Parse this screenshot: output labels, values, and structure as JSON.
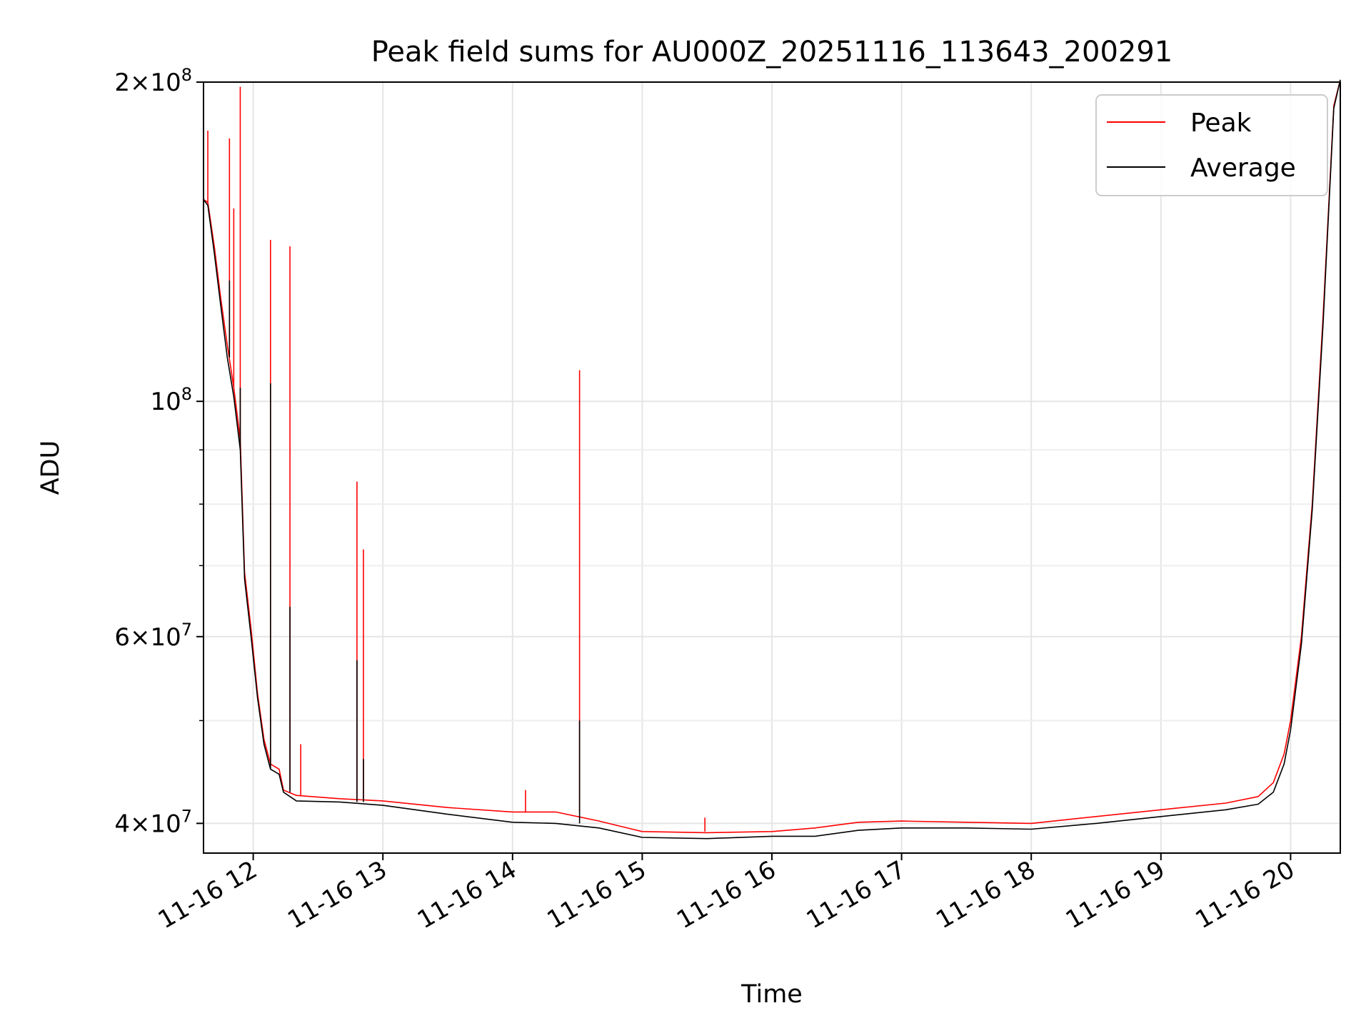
{
  "chart_data": {
    "type": "line",
    "title": "Peak field sums for AU000Z_20251116_113643_200291",
    "xlabel": "Time",
    "ylabel": "ADU",
    "yscale": "log",
    "ylim": [
      37500000,
      200000000
    ],
    "xlim": [
      "2025-11-16 11:37",
      "2025-11-16 20:23"
    ],
    "grid": true,
    "legend": "upper right",
    "x_ticks": [
      "11-16 12",
      "11-16 13",
      "11-16 14",
      "11-16 15",
      "11-16 16",
      "11-16 17",
      "11-16 18",
      "11-16 19",
      "11-16 20"
    ],
    "y_ticks_major": [
      {
        "value": 40000000,
        "base": "4",
        "exp": "7"
      },
      {
        "value": 60000000,
        "base": "6",
        "exp": "7"
      },
      {
        "value": 100000000,
        "base": "",
        "exp": "8"
      },
      {
        "value": 200000000,
        "base": "2",
        "exp": "8"
      }
    ],
    "y_ticks_minor": [
      50000000,
      70000000,
      80000000,
      90000000
    ],
    "series": [
      {
        "name": "Peak",
        "color": "#ff0000",
        "points": [
          [
            "2025-11-16 11:37",
            155000000
          ],
          [
            "2025-11-16 11:39",
            154000000
          ],
          [
            "2025-11-16 11:42",
            140000000
          ],
          [
            "2025-11-16 11:45",
            125000000
          ],
          [
            "2025-11-16 11:48",
            113000000
          ],
          [
            "2025-11-16 11:51",
            103000000
          ],
          [
            "2025-11-16 11:54",
            92000000
          ],
          [
            "2025-11-16 11:56",
            69000000
          ],
          [
            "2025-11-16 11:59",
            61000000
          ],
          [
            "2025-11-16 12:02",
            53000000
          ],
          [
            "2025-11-16 12:05",
            48000000
          ],
          [
            "2025-11-16 12:08",
            45500000
          ],
          [
            "2025-11-16 12:12",
            45000000
          ],
          [
            "2025-11-16 12:14",
            43000000
          ],
          [
            "2025-11-16 12:20",
            42500000
          ],
          [
            "2025-11-16 12:40",
            42200000
          ],
          [
            "2025-11-16 13:00",
            42000000
          ],
          [
            "2025-11-16 13:30",
            41400000
          ],
          [
            "2025-11-16 14:00",
            41000000
          ],
          [
            "2025-11-16 14:20",
            41000000
          ],
          [
            "2025-11-16 14:40",
            40200000
          ],
          [
            "2025-11-16 15:00",
            39300000
          ],
          [
            "2025-11-16 15:30",
            39200000
          ],
          [
            "2025-11-16 16:00",
            39300000
          ],
          [
            "2025-11-16 16:20",
            39600000
          ],
          [
            "2025-11-16 16:40",
            40100000
          ],
          [
            "2025-11-16 17:00",
            40200000
          ],
          [
            "2025-11-16 17:30",
            40100000
          ],
          [
            "2025-11-16 18:00",
            40000000
          ],
          [
            "2025-11-16 18:30",
            40600000
          ],
          [
            "2025-11-16 19:00",
            41200000
          ],
          [
            "2025-11-16 19:30",
            41800000
          ],
          [
            "2025-11-16 19:45",
            42400000
          ],
          [
            "2025-11-16 19:52",
            43700000
          ],
          [
            "2025-11-16 19:57",
            46500000
          ],
          [
            "2025-11-16 20:00",
            50000000
          ],
          [
            "2025-11-16 20:05",
            60000000
          ],
          [
            "2025-11-16 20:10",
            80000000
          ],
          [
            "2025-11-16 20:15",
            120000000
          ],
          [
            "2025-11-16 20:20",
            190000000
          ],
          [
            "2025-11-16 20:23",
            201000000
          ]
        ],
        "spikes": [
          [
            "2025-11-16 11:39",
            180000000
          ],
          [
            "2025-11-16 11:49",
            177000000
          ],
          [
            "2025-11-16 11:51",
            152000000
          ],
          [
            "2025-11-16 11:54",
            198000000
          ],
          [
            "2025-11-16 12:08",
            142000000
          ],
          [
            "2025-11-16 12:17",
            140000000
          ],
          [
            "2025-11-16 12:22",
            47500000
          ],
          [
            "2025-11-16 12:48",
            84000000
          ],
          [
            "2025-11-16 12:51",
            72500000
          ],
          [
            "2025-11-16 14:06",
            43000000
          ],
          [
            "2025-11-16 14:31",
            107000000
          ],
          [
            "2025-11-16 15:29",
            40500000
          ]
        ]
      },
      {
        "name": "Average",
        "color": "#000000",
        "points": [
          [
            "2025-11-16 11:37",
            155000000
          ],
          [
            "2025-11-16 11:39",
            153000000
          ],
          [
            "2025-11-16 11:42",
            138000000
          ],
          [
            "2025-11-16 11:45",
            123000000
          ],
          [
            "2025-11-16 11:48",
            110000000
          ],
          [
            "2025-11-16 11:51",
            101000000
          ],
          [
            "2025-11-16 11:54",
            90000000
          ],
          [
            "2025-11-16 11:56",
            68000000
          ],
          [
            "2025-11-16 11:59",
            60000000
          ],
          [
            "2025-11-16 12:02",
            52500000
          ],
          [
            "2025-11-16 12:05",
            47500000
          ],
          [
            "2025-11-16 12:08",
            45000000
          ],
          [
            "2025-11-16 12:12",
            44500000
          ],
          [
            "2025-11-16 12:14",
            42800000
          ],
          [
            "2025-11-16 12:20",
            42000000
          ],
          [
            "2025-11-16 12:40",
            41900000
          ],
          [
            "2025-11-16 13:00",
            41600000
          ],
          [
            "2025-11-16 13:30",
            40800000
          ],
          [
            "2025-11-16 14:00",
            40100000
          ],
          [
            "2025-11-16 14:20",
            40000000
          ],
          [
            "2025-11-16 14:40",
            39600000
          ],
          [
            "2025-11-16 15:00",
            38800000
          ],
          [
            "2025-11-16 15:30",
            38700000
          ],
          [
            "2025-11-16 16:00",
            38900000
          ],
          [
            "2025-11-16 16:20",
            38900000
          ],
          [
            "2025-11-16 16:40",
            39400000
          ],
          [
            "2025-11-16 17:00",
            39600000
          ],
          [
            "2025-11-16 17:30",
            39600000
          ],
          [
            "2025-11-16 18:00",
            39500000
          ],
          [
            "2025-11-16 18:30",
            40000000
          ],
          [
            "2025-11-16 19:00",
            40600000
          ],
          [
            "2025-11-16 19:30",
            41200000
          ],
          [
            "2025-11-16 19:45",
            41700000
          ],
          [
            "2025-11-16 19:52",
            42800000
          ],
          [
            "2025-11-16 19:57",
            45500000
          ],
          [
            "2025-11-16 20:00",
            49000000
          ],
          [
            "2025-11-16 20:05",
            59000000
          ],
          [
            "2025-11-16 20:10",
            79000000
          ],
          [
            "2025-11-16 20:15",
            118000000
          ],
          [
            "2025-11-16 20:20",
            189000000
          ],
          [
            "2025-11-16 20:23",
            201000000
          ]
        ],
        "spikes": [
          [
            "2025-11-16 11:49",
            130000000
          ],
          [
            "2025-11-16 11:54",
            103000000
          ],
          [
            "2025-11-16 12:08",
            104000000
          ],
          [
            "2025-11-16 12:17",
            64000000
          ],
          [
            "2025-11-16 12:48",
            57000000
          ],
          [
            "2025-11-16 12:51",
            46000000
          ],
          [
            "2025-11-16 14:31",
            50000000
          ]
        ]
      }
    ]
  }
}
